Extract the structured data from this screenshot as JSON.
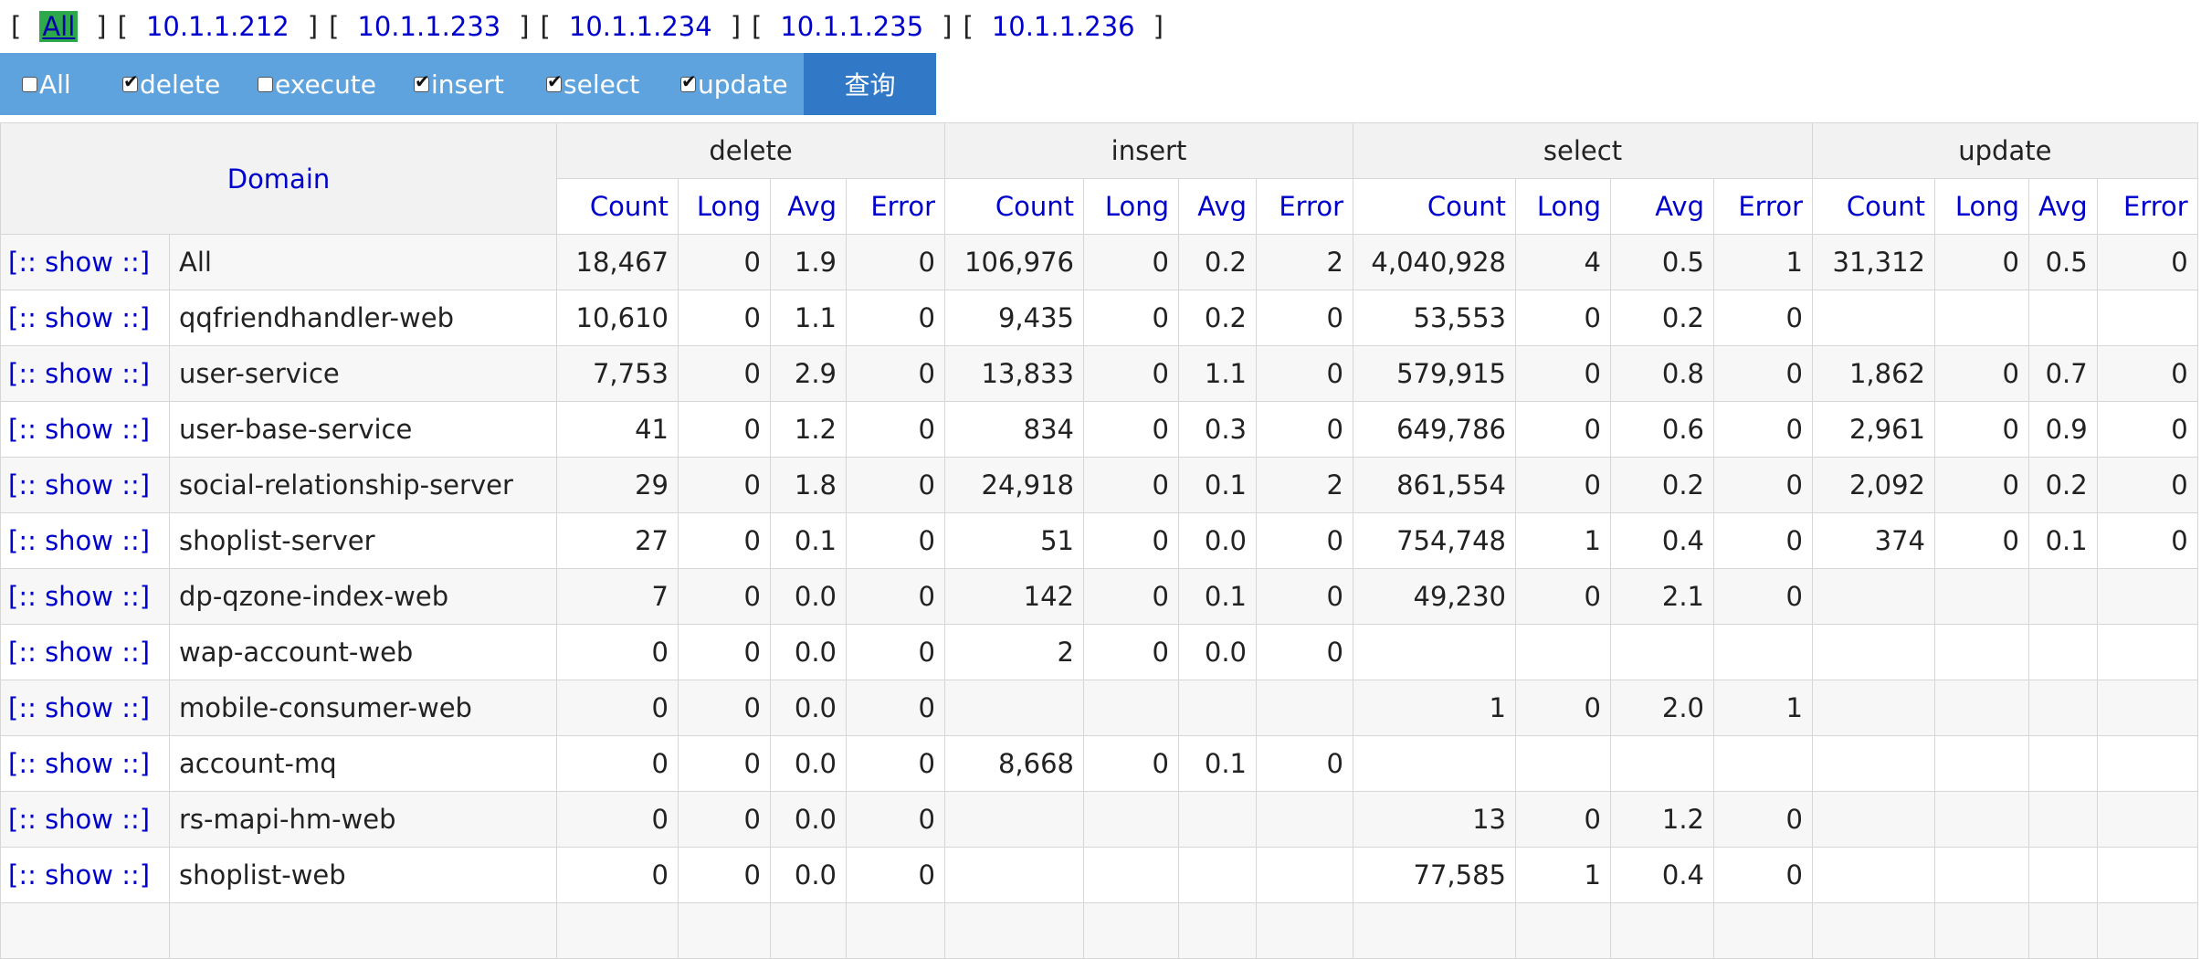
{
  "ip_bar": {
    "items": [
      {
        "label": "All",
        "active": true
      },
      {
        "label": "10.1.1.212",
        "active": false
      },
      {
        "label": "10.1.1.233",
        "active": false
      },
      {
        "label": "10.1.1.234",
        "active": false
      },
      {
        "label": "10.1.1.235",
        "active": false
      },
      {
        "label": "10.1.1.236",
        "active": false
      }
    ]
  },
  "filters": {
    "items": [
      {
        "label": "All",
        "checked": false
      },
      {
        "label": "delete",
        "checked": true
      },
      {
        "label": "execute",
        "checked": false
      },
      {
        "label": "insert",
        "checked": true
      },
      {
        "label": "select",
        "checked": true
      },
      {
        "label": "update",
        "checked": true
      }
    ],
    "query_label": "查询"
  },
  "table": {
    "domain_header": "Domain",
    "groups": [
      "delete",
      "insert",
      "select",
      "update"
    ],
    "sub_headers": [
      "Count",
      "Long",
      "Avg",
      "Error"
    ],
    "show_label": "[:: show ::]",
    "rows": [
      {
        "name": "All",
        "cells": [
          "18,467",
          "0",
          "1.9",
          "0",
          "106,976",
          "0",
          "0.2",
          "2",
          "4,040,928",
          "4",
          "0.5",
          "1",
          "31,312",
          "0",
          "0.5",
          "0"
        ]
      },
      {
        "name": "qqfriendhandler-web",
        "cells": [
          "10,610",
          "0",
          "1.1",
          "0",
          "9,435",
          "0",
          "0.2",
          "0",
          "53,553",
          "0",
          "0.2",
          "0",
          "",
          "",
          "",
          ""
        ]
      },
      {
        "name": "user-service",
        "cells": [
          "7,753",
          "0",
          "2.9",
          "0",
          "13,833",
          "0",
          "1.1",
          "0",
          "579,915",
          "0",
          "0.8",
          "0",
          "1,862",
          "0",
          "0.7",
          "0"
        ]
      },
      {
        "name": "user-base-service",
        "cells": [
          "41",
          "0",
          "1.2",
          "0",
          "834",
          "0",
          "0.3",
          "0",
          "649,786",
          "0",
          "0.6",
          "0",
          "2,961",
          "0",
          "0.9",
          "0"
        ]
      },
      {
        "name": "social-relationship-server",
        "cells": [
          "29",
          "0",
          "1.8",
          "0",
          "24,918",
          "0",
          "0.1",
          "2",
          "861,554",
          "0",
          "0.2",
          "0",
          "2,092",
          "0",
          "0.2",
          "0"
        ]
      },
      {
        "name": "shoplist-server",
        "cells": [
          "27",
          "0",
          "0.1",
          "0",
          "51",
          "0",
          "0.0",
          "0",
          "754,748",
          "1",
          "0.4",
          "0",
          "374",
          "0",
          "0.1",
          "0"
        ]
      },
      {
        "name": "dp-qzone-index-web",
        "cells": [
          "7",
          "0",
          "0.0",
          "0",
          "142",
          "0",
          "0.1",
          "0",
          "49,230",
          "0",
          "2.1",
          "0",
          "",
          "",
          "",
          ""
        ]
      },
      {
        "name": "wap-account-web",
        "cells": [
          "0",
          "0",
          "0.0",
          "0",
          "2",
          "0",
          "0.0",
          "0",
          "",
          "",
          "",
          "",
          "",
          "",
          "",
          ""
        ]
      },
      {
        "name": "mobile-consumer-web",
        "cells": [
          "0",
          "0",
          "0.0",
          "0",
          "",
          "",
          "",
          "",
          "1",
          "0",
          "2.0",
          "1",
          "",
          "",
          "",
          ""
        ]
      },
      {
        "name": "account-mq",
        "cells": [
          "0",
          "0",
          "0.0",
          "0",
          "8,668",
          "0",
          "0.1",
          "0",
          "",
          "",
          "",
          "",
          "",
          "",
          "",
          ""
        ]
      },
      {
        "name": "rs-mapi-hm-web",
        "cells": [
          "0",
          "0",
          "0.0",
          "0",
          "",
          "",
          "",
          "",
          "13",
          "0",
          "1.2",
          "0",
          "",
          "",
          "",
          ""
        ]
      },
      {
        "name": "shoplist-web",
        "cells": [
          "0",
          "0",
          "0.0",
          "0",
          "",
          "",
          "",
          "",
          "77,585",
          "1",
          "0.4",
          "0",
          "",
          "",
          "",
          ""
        ]
      },
      {
        "name": "",
        "cells": [
          "",
          "",
          "",
          "",
          "",
          "",
          "",
          "",
          "",
          "",
          "",
          "",
          "",
          "",
          "",
          ""
        ]
      }
    ]
  }
}
